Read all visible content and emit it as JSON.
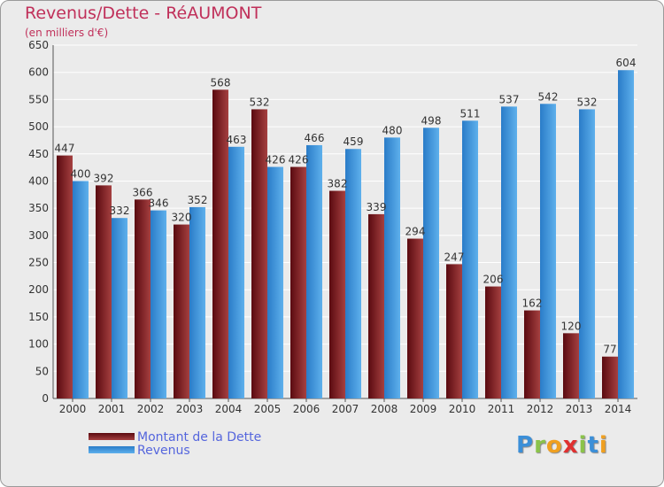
{
  "title": "Revenus/Dette - RéAUMONT",
  "subtitle": "(en milliers d'€)",
  "colors": {
    "dette_dark": "#5a0a10",
    "dette_light": "#a54040",
    "revenus_dark": "#2a7cc8",
    "revenus_light": "#5eb0ec",
    "grid": "#ffffff",
    "text": "#333333"
  },
  "logo": {
    "letters": [
      "P",
      "r",
      "o",
      "x",
      "i",
      "t",
      "i"
    ],
    "colors": [
      "#3b8fd8",
      "#8bc34a",
      "#f0a020",
      "#e03030",
      "#8bc34a",
      "#3b8fd8",
      "#f0a020"
    ]
  },
  "chart_data": {
    "type": "bar",
    "title": "Revenus/Dette - RéAUMONT",
    "ylabel": "(en milliers d'€)",
    "xlabel": "",
    "ylim": [
      0,
      650
    ],
    "yticks": [
      0,
      50,
      100,
      150,
      200,
      250,
      300,
      350,
      400,
      450,
      500,
      550,
      600,
      650
    ],
    "grid": true,
    "legend_position": "bottom-left",
    "categories": [
      "2000",
      "2001",
      "2002",
      "2003",
      "2004",
      "2005",
      "2006",
      "2007",
      "2008",
      "2009",
      "2010",
      "2011",
      "2012",
      "2013",
      "2014"
    ],
    "series": [
      {
        "name": "Montant de la Dette",
        "values": [
          447,
          392,
          366,
          320,
          568,
          532,
          426,
          382,
          339,
          294,
          247,
          206,
          162,
          120,
          77
        ]
      },
      {
        "name": "Revenus",
        "values": [
          400,
          332,
          346,
          352,
          463,
          426,
          466,
          459,
          480,
          498,
          511,
          537,
          542,
          532,
          604
        ]
      }
    ]
  }
}
